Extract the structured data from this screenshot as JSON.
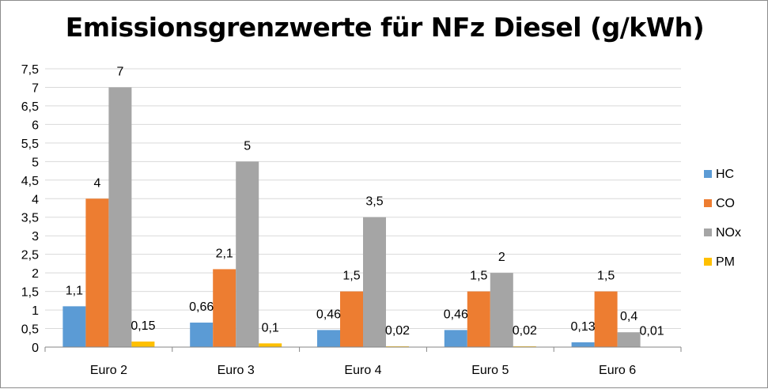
{
  "chart_data": {
    "type": "bar",
    "title": "Emissionsgrenzwerte für NFz Diesel (g/kWh)",
    "categories": [
      "Euro 2",
      "Euro 3",
      "Euro 4",
      "Euro 5",
      "Euro 6"
    ],
    "series": [
      {
        "name": "HC",
        "color": "#5b9bd5",
        "values": [
          1.1,
          0.66,
          0.46,
          0.46,
          0.13
        ],
        "labels": [
          "1,1",
          "0,66",
          "0,46",
          "0,46",
          "0,13"
        ]
      },
      {
        "name": "CO",
        "color": "#ed7d31",
        "values": [
          4,
          2.1,
          1.5,
          1.5,
          1.5
        ],
        "labels": [
          "4",
          "2,1",
          "1,5",
          "1,5",
          "1,5"
        ]
      },
      {
        "name": "NOx",
        "color": "#a5a5a5",
        "values": [
          7,
          5,
          3.5,
          2,
          0.4
        ],
        "labels": [
          "7",
          "5",
          "3,5",
          "2",
          "0,4"
        ]
      },
      {
        "name": "PM",
        "color": "#ffc000",
        "values": [
          0.15,
          0.1,
          0.02,
          0.02,
          0.01
        ],
        "labels": [
          "0,15",
          "0,1",
          "0,02",
          "0,02",
          "0,01"
        ]
      }
    ],
    "ylim": [
      0,
      7.5
    ],
    "yticks": [
      0,
      0.5,
      1,
      1.5,
      2,
      2.5,
      3,
      3.5,
      4,
      4.5,
      5,
      5.5,
      6,
      6.5,
      7,
      7.5
    ],
    "ytick_labels": [
      "0",
      "0,5",
      "1",
      "1,5",
      "2",
      "2,5",
      "3",
      "3,5",
      "4",
      "4,5",
      "5",
      "5,5",
      "6",
      "6,5",
      "7",
      "7,5"
    ],
    "grid": true,
    "legend": "right",
    "colors": {
      "grid": "#d9d9d9",
      "axis": "#868686",
      "border": "#8c8c8c"
    }
  }
}
